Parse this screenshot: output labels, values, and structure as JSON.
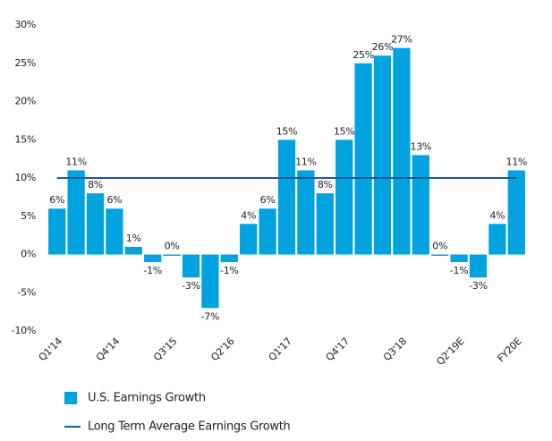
{
  "chart_data": {
    "type": "bar",
    "categories": [
      "Q1'14",
      null,
      null,
      "Q4'14",
      null,
      null,
      "Q3'15",
      null,
      null,
      "Q2'16",
      null,
      null,
      "Q1'17",
      null,
      null,
      "Q4'17",
      null,
      null,
      "Q3'18",
      null,
      null,
      "Q2'19E",
      null,
      null,
      "FY20E"
    ],
    "series": [
      {
        "name": "U.S. Earnings Growth",
        "color": "#00a3e0",
        "values": [
          6,
          11,
          8,
          6,
          1,
          -1,
          0,
          -3,
          -7,
          -1,
          4,
          6,
          15,
          11,
          8,
          15,
          25,
          26,
          27,
          13,
          0,
          -1,
          -3,
          4,
          11
        ],
        "value_labels": [
          "6%",
          "11%",
          "8%",
          "6%",
          "1%",
          "-1%",
          "0%",
          "-3%",
          "-7%",
          "-1%",
          "4%",
          "6%",
          "15%",
          "11%",
          "8%",
          "15%",
          "25%",
          "26%",
          "27%",
          "13%",
          "0%",
          "-1%",
          "-3%",
          "4%",
          "11%"
        ]
      }
    ],
    "reference_line": {
      "name": "Long Term Average Earnings Growth",
      "value": 10,
      "color": "#1a5a96"
    },
    "ylim": [
      -10,
      30
    ],
    "yticks": [
      {
        "value": -10,
        "label": "-10%"
      },
      {
        "value": -5,
        "label": "-5%"
      },
      {
        "value": 0,
        "label": "0%"
      },
      {
        "value": 5,
        "label": "5%"
      },
      {
        "value": 10,
        "label": "10%"
      },
      {
        "value": 15,
        "label": "15%"
      },
      {
        "value": 20,
        "label": "20%"
      },
      {
        "value": 25,
        "label": "25%"
      },
      {
        "value": 30,
        "label": "30%"
      }
    ],
    "grid": false
  }
}
